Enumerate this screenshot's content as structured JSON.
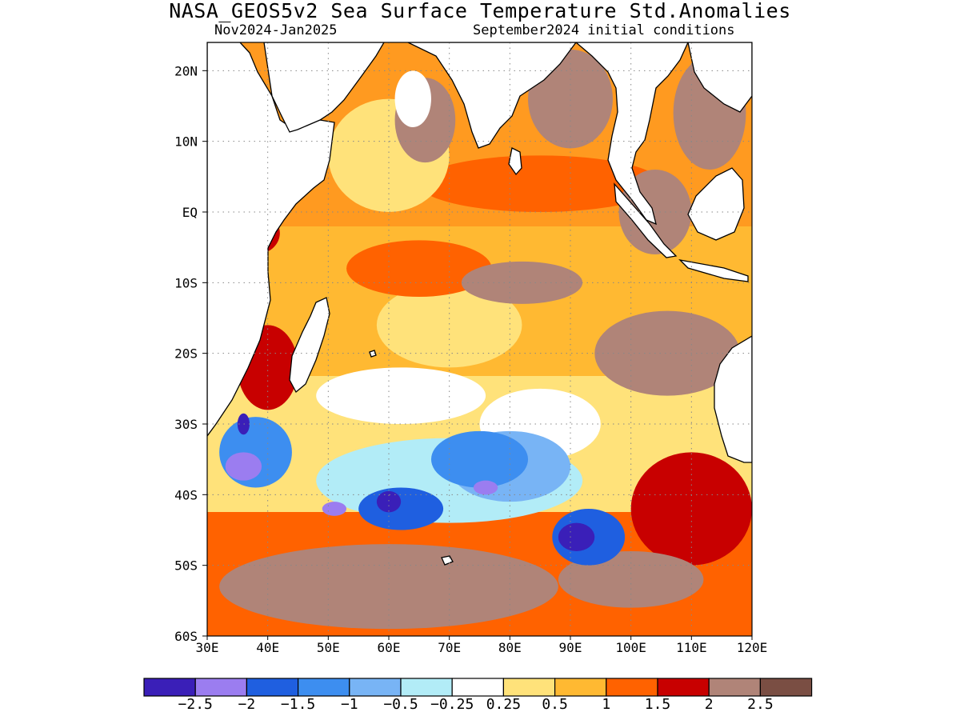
{
  "title": "NASA_GEOS5v2 Sea Surface Temperature Std.Anomalies",
  "subtitle_left": "Nov2024-Jan2025",
  "subtitle_right": "September2024 initial conditions",
  "map": {
    "lon_range": [
      30,
      120
    ],
    "lat_range": [
      -60,
      24
    ],
    "lon_ticks": [
      "30E",
      "40E",
      "50E",
      "60E",
      "70E",
      "80E",
      "90E",
      "100E",
      "110E",
      "120E"
    ],
    "lon_tick_values": [
      30,
      40,
      50,
      60,
      70,
      80,
      90,
      100,
      110,
      120
    ],
    "lat_ticks": [
      "20N",
      "10N",
      "EQ",
      "10S",
      "20S",
      "30S",
      "40S",
      "50S",
      "60S"
    ],
    "lat_tick_values": [
      20,
      10,
      0,
      -10,
      -20,
      -30,
      -40,
      -50,
      -60
    ],
    "grid": true
  },
  "colorbar": {
    "colors": [
      "#3a1fb8",
      "#9b7df0",
      "#1f5fe0",
      "#3d8ef0",
      "#78b4f5",
      "#b2ecf7",
      "#ffffff",
      "#ffe27a",
      "#ffb932",
      "#ff6200",
      "#c80000",
      "#b08478",
      "#7a4e43"
    ],
    "labels": [
      "-2.5",
      "-2",
      "-1.5",
      "-1",
      "-0.5",
      "-0.25",
      "0.25",
      "0.5",
      "1",
      "1.5",
      "2",
      "2.5"
    ]
  },
  "anomaly_regions": [
    {
      "level": 2.5,
      "lon": 90,
      "lat": 16,
      "rx": 7,
      "ry": 7
    },
    {
      "level": 2.5,
      "lon": 66,
      "lat": 13,
      "rx": 5,
      "ry": 6
    },
    {
      "level": 2.5,
      "lon": 113,
      "lat": 14,
      "rx": 6,
      "ry": 8
    },
    {
      "level": 2.5,
      "lon": 104,
      "lat": 0,
      "rx": 6,
      "ry": 6
    },
    {
      "level": 2.5,
      "lon": 82,
      "lat": -10,
      "rx": 10,
      "ry": 3
    },
    {
      "level": 2.5,
      "lon": 106,
      "lat": -20,
      "rx": 12,
      "ry": 6
    },
    {
      "level": 2.5,
      "lon": 60,
      "lat": -53,
      "rx": 28,
      "ry": 6
    },
    {
      "level": 2.5,
      "lon": 100,
      "lat": -52,
      "rx": 12,
      "ry": 4
    },
    {
      "level": 2,
      "lon": 40,
      "lat": -22,
      "rx": 5,
      "ry": 6
    },
    {
      "level": 2,
      "lon": 38,
      "lat": -3,
      "rx": 4,
      "ry": 3
    },
    {
      "level": 2,
      "lon": 110,
      "lat": -42,
      "rx": 10,
      "ry": 8
    },
    {
      "level": 1.5,
      "lon": 85,
      "lat": 4,
      "rx": 20,
      "ry": 4
    },
    {
      "level": 1.5,
      "lon": 65,
      "lat": -8,
      "rx": 12,
      "ry": 4
    },
    {
      "level": 0.5,
      "lon": 60,
      "lat": 8,
      "rx": 10,
      "ry": 8
    },
    {
      "level": 0.5,
      "lon": 70,
      "lat": -16,
      "rx": 12,
      "ry": 6
    },
    {
      "level": 0.25,
      "lon": 62,
      "lat": -26,
      "rx": 14,
      "ry": 4
    },
    {
      "level": 0.25,
      "lon": 64,
      "lat": 16,
      "rx": 3,
      "ry": 4
    },
    {
      "level": 0.25,
      "lon": 85,
      "lat": -30,
      "rx": 10,
      "ry": 5
    },
    {
      "level": -0.25,
      "lon": 70,
      "lat": -38,
      "rx": 22,
      "ry": 6
    },
    {
      "level": -0.5,
      "lon": 80,
      "lat": -36,
      "rx": 10,
      "ry": 5
    },
    {
      "level": -1,
      "lon": 38,
      "lat": -34,
      "rx": 6,
      "ry": 5
    },
    {
      "level": -1,
      "lon": 75,
      "lat": -35,
      "rx": 8,
      "ry": 4
    },
    {
      "level": -1.5,
      "lon": 62,
      "lat": -42,
      "rx": 7,
      "ry": 3
    },
    {
      "level": -1.5,
      "lon": 93,
      "lat": -46,
      "rx": 6,
      "ry": 4
    },
    {
      "level": -2,
      "lon": 36,
      "lat": -36,
      "rx": 3,
      "ry": 2
    },
    {
      "level": -2,
      "lon": 51,
      "lat": -42,
      "rx": 2,
      "ry": 1
    },
    {
      "level": -2,
      "lon": 76,
      "lat": -39,
      "rx": 2,
      "ry": 1
    },
    {
      "level": -2.5,
      "lon": 91,
      "lat": -46,
      "rx": 3,
      "ry": 2
    },
    {
      "level": -2.5,
      "lon": 60,
      "lat": -41,
      "rx": 2,
      "ry": 1.5
    },
    {
      "level": -2.5,
      "lon": 36,
      "lat": -30,
      "rx": 1,
      "ry": 1.5
    }
  ]
}
